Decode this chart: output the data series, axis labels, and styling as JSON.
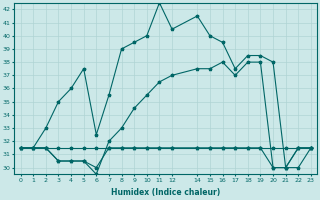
{
  "xlabel": "Humidex (Indice chaleur)",
  "bg_color": "#cce8e8",
  "line_color": "#006666",
  "grid_color": "#b0d4d4",
  "xlim": [
    -0.5,
    23.5
  ],
  "ylim": [
    29.5,
    42.5
  ],
  "yticks": [
    30,
    31,
    32,
    33,
    34,
    35,
    36,
    37,
    38,
    39,
    40,
    41,
    42
  ],
  "xticks": [
    0,
    1,
    2,
    3,
    4,
    5,
    6,
    7,
    8,
    9,
    10,
    11,
    12,
    14,
    15,
    16,
    17,
    18,
    19,
    20,
    21,
    22,
    23
  ],
  "xtick_labels": [
    "0",
    "1",
    "2",
    "3",
    "4",
    "5",
    "6",
    "7",
    "8",
    "9",
    "10",
    "11",
    "12",
    "14",
    "15",
    "16",
    "17",
    "18",
    "19",
    "20",
    "21",
    "22",
    "23"
  ],
  "lines": [
    {
      "x": [
        0,
        1,
        2,
        3,
        4,
        5,
        6,
        7,
        8,
        9,
        10,
        11,
        12,
        14,
        15,
        16,
        17,
        18,
        19,
        20,
        21,
        22,
        23
      ],
      "y": [
        31.5,
        31.5,
        31.5,
        31.5,
        31.5,
        31.5,
        31.5,
        31.5,
        31.5,
        31.5,
        31.5,
        31.5,
        31.5,
        31.5,
        31.5,
        31.5,
        31.5,
        31.5,
        31.5,
        31.5,
        31.5,
        31.5,
        31.5
      ]
    },
    {
      "x": [
        0,
        1,
        2,
        3,
        4,
        5,
        6,
        7,
        8,
        9,
        10,
        11,
        12,
        14,
        15,
        16,
        17,
        18,
        19,
        20,
        21,
        22,
        23
      ],
      "y": [
        31.5,
        31.5,
        31.5,
        30.5,
        30.5,
        30.5,
        30.0,
        31.5,
        31.5,
        31.5,
        31.5,
        31.5,
        31.5,
        31.5,
        31.5,
        31.5,
        31.5,
        31.5,
        31.5,
        30.0,
        30.0,
        31.5,
        31.5
      ]
    },
    {
      "x": [
        0,
        1,
        2,
        3,
        4,
        5,
        6,
        7,
        8,
        9,
        10,
        11,
        12,
        14,
        15,
        16,
        17,
        18,
        19,
        20,
        21,
        22,
        23
      ],
      "y": [
        31.5,
        31.5,
        31.5,
        30.5,
        30.5,
        30.5,
        29.5,
        32.0,
        33.0,
        34.5,
        35.5,
        36.5,
        37.0,
        37.5,
        37.5,
        38.0,
        37.0,
        38.0,
        38.0,
        30.0,
        30.0,
        31.5,
        31.5
      ]
    },
    {
      "x": [
        0,
        1,
        2,
        3,
        4,
        5,
        6,
        7,
        8,
        9,
        10,
        11,
        12,
        14,
        15,
        16,
        17,
        18,
        19,
        20,
        21,
        22,
        23
      ],
      "y": [
        31.5,
        31.5,
        33.0,
        35.0,
        36.0,
        37.5,
        32.5,
        35.5,
        39.0,
        39.5,
        40.0,
        42.5,
        40.5,
        41.5,
        40.0,
        39.5,
        37.5,
        38.5,
        38.5,
        38.0,
        30.0,
        30.0,
        31.5
      ]
    }
  ]
}
